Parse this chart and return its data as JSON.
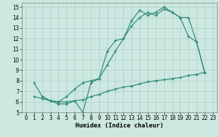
{
  "line1_x": [
    1,
    2,
    3,
    4,
    5,
    6,
    7,
    8,
    9,
    10,
    11,
    12,
    13,
    14,
    15,
    16,
    17,
    18,
    19,
    20,
    21,
    22
  ],
  "line1_y": [
    7.8,
    6.5,
    6.1,
    5.8,
    5.8,
    6.1,
    5.0,
    7.8,
    8.2,
    10.8,
    11.8,
    12.0,
    13.7,
    14.7,
    14.2,
    14.5,
    15.0,
    14.5,
    14.0,
    14.0,
    11.7,
    8.8
  ],
  "line2_x": [
    2,
    3,
    4,
    5,
    6,
    7,
    8,
    9,
    10,
    11,
    12,
    13,
    14,
    15,
    16,
    17,
    18,
    19,
    20,
    21,
    22
  ],
  "line2_y": [
    6.5,
    6.1,
    6.0,
    6.5,
    7.2,
    7.8,
    8.0,
    8.2,
    9.5,
    10.8,
    12.0,
    13.2,
    14.0,
    14.5,
    14.2,
    14.8,
    14.5,
    14.0,
    12.2,
    11.7,
    8.8
  ],
  "line3_x": [
    1,
    2,
    3,
    4,
    5,
    6,
    7,
    8,
    9,
    10,
    11,
    12,
    13,
    14,
    15,
    16,
    17,
    18,
    19,
    20,
    21,
    22
  ],
  "line3_y": [
    6.5,
    6.3,
    6.1,
    6.0,
    6.0,
    6.1,
    6.2,
    6.5,
    6.7,
    7.0,
    7.2,
    7.4,
    7.5,
    7.7,
    7.9,
    8.0,
    8.1,
    8.2,
    8.3,
    8.5,
    8.6,
    8.8
  ],
  "line_color": "#2e8b74",
  "bg_color": "#cce8e0",
  "grid_color": "#aacec8",
  "xlabel": "Humidex (Indice chaleur)",
  "xlim": [
    -0.5,
    23.5
  ],
  "ylim": [
    5,
    15.4
  ],
  "xticks": [
    0,
    1,
    2,
    3,
    4,
    5,
    6,
    7,
    8,
    9,
    10,
    11,
    12,
    13,
    14,
    15,
    16,
    17,
    18,
    19,
    20,
    21,
    22,
    23
  ],
  "yticks": [
    5,
    6,
    7,
    8,
    9,
    10,
    11,
    12,
    13,
    14,
    15
  ],
  "label_fontsize": 6.5,
  "tick_fontsize": 5.5
}
